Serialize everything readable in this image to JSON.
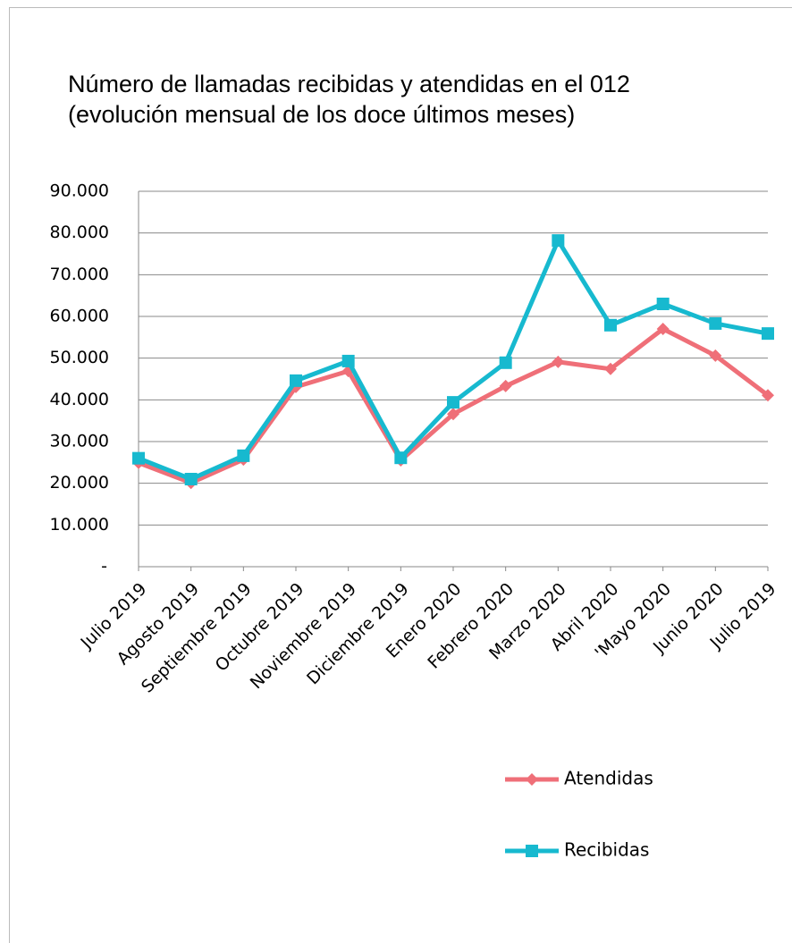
{
  "chart_data": {
    "type": "line",
    "title": "Número de llamadas recibidas y atendidas en el 012",
    "subtitle": "(evolución mensual de los doce últimos meses)",
    "categories": [
      "Julio 2019",
      "Agosto 2019",
      "Septiembre 2019",
      "Octubre 2019",
      "Noviembre 2019",
      "Diciembre 2019",
      "Enero 2020",
      "Febrero 2020",
      "Marzo 2020",
      "Abril 2020",
      "'Mayo 2020",
      "Junio 2020",
      "Julio 2019"
    ],
    "series": [
      {
        "name": "Atendidas",
        "color": "#ef6f78",
        "marker": "diamond",
        "values": [
          24900,
          20100,
          25700,
          43100,
          46900,
          25500,
          36600,
          43300,
          49100,
          47400,
          57000,
          50600,
          41100
        ]
      },
      {
        "name": "Recibidas",
        "color": "#17b9cf",
        "marker": "square",
        "values": [
          26000,
          21000,
          26600,
          44600,
          49300,
          26100,
          39400,
          48900,
          78200,
          57900,
          63000,
          58300,
          55900
        ]
      }
    ],
    "ylim": [
      0,
      90000
    ],
    "yticks": [
      {
        "value": 0,
        "label": "-"
      },
      {
        "value": 10000,
        "label": "10.000"
      },
      {
        "value": 20000,
        "label": "20.000"
      },
      {
        "value": 30000,
        "label": "30.000"
      },
      {
        "value": 40000,
        "label": "40.000"
      },
      {
        "value": 50000,
        "label": "50.000"
      },
      {
        "value": 60000,
        "label": "60.000"
      },
      {
        "value": 70000,
        "label": "70.000"
      },
      {
        "value": 80000,
        "label": "80.000"
      },
      {
        "value": 90000,
        "label": "90.000"
      }
    ],
    "grid": true,
    "legend": "bottom"
  }
}
